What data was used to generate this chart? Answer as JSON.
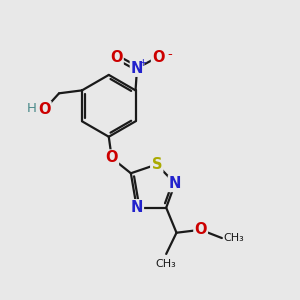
{
  "bg_color": "#e8e8e8",
  "bond_color": "#1a1a1a",
  "bond_width": 1.6,
  "atom_colors": {
    "C": "#1a1a1a",
    "H": "#4a8a8a",
    "O": "#cc0000",
    "N": "#2222cc",
    "S": "#aaaa00"
  },
  "font_size": 9.5,
  "fig_size": [
    3.0,
    3.0
  ],
  "dpi": 100
}
